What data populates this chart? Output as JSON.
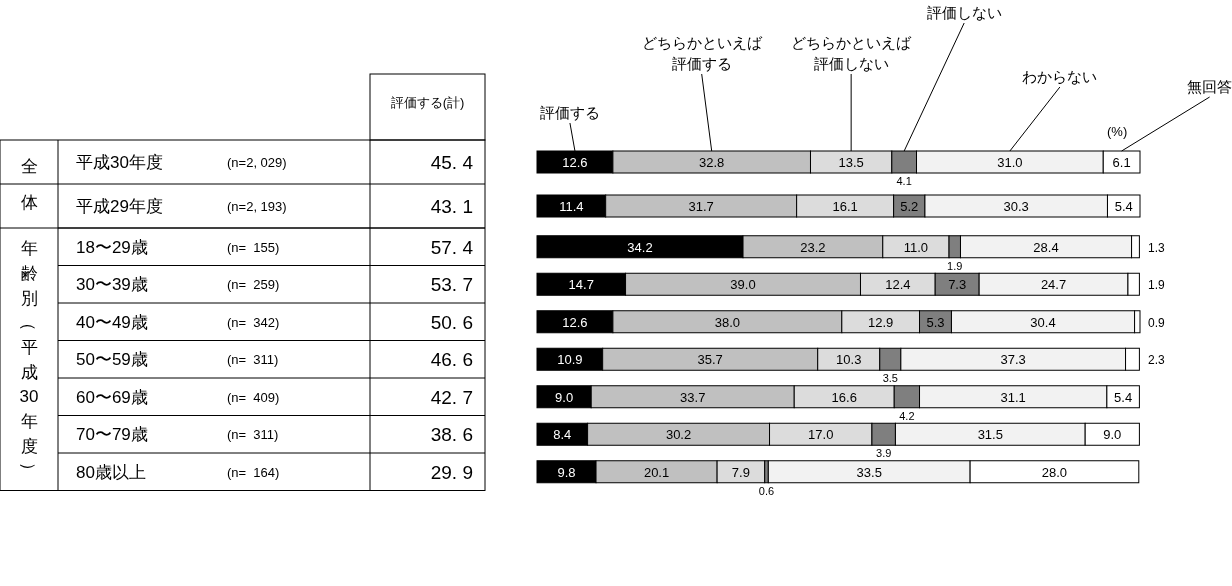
{
  "chart_data": {
    "type": "bar",
    "orientation": "horizontal",
    "stacked": true,
    "legend": "top",
    "categories": [
      "平成30年度",
      "平成29年度",
      "18〜29歳",
      "30〜39歳",
      "40〜49歳",
      "50〜59歳",
      "60〜69歳",
      "70〜79歳",
      "80歳以上"
    ],
    "series": [
      {
        "name": "評価する",
        "color": "#000000",
        "values": [
          12.6,
          11.4,
          34.2,
          14.7,
          12.6,
          10.9,
          9.0,
          8.4,
          9.8
        ],
        "value_labels": [
          "12.6",
          "11.4",
          "34.2",
          "14.7",
          "12.6",
          "10.9",
          "9.0",
          "8.4",
          "9.8"
        ]
      },
      {
        "name": "どちらかといえば評価する",
        "color": "#c0c0c0",
        "values": [
          32.8,
          31.7,
          23.2,
          39.0,
          38.0,
          35.7,
          33.7,
          30.2,
          20.1
        ],
        "value_labels": [
          "32.8",
          "31.7",
          "23.2",
          "39.0",
          "38.0",
          "35.7",
          "33.7",
          "30.2",
          "20.1"
        ]
      },
      {
        "name": "どちらかといえば評価しない",
        "color": "#dcdcdc",
        "values": [
          13.5,
          16.1,
          11.0,
          12.4,
          12.9,
          10.3,
          16.6,
          17.0,
          7.9
        ],
        "value_labels": [
          "13.5",
          "16.1",
          "11.0",
          "12.4",
          "12.9",
          "10.3",
          "16.6",
          "17.0",
          "7.9"
        ]
      },
      {
        "name": "評価しない",
        "color": "#7f7f7f",
        "values": [
          4.1,
          5.2,
          1.9,
          7.3,
          5.3,
          3.5,
          4.2,
          3.9,
          0.6
        ],
        "value_labels": [
          "4.1",
          "5.2",
          "1.9",
          "7.3",
          "5.3",
          "3.5",
          "4.2",
          "3.9",
          "0.6"
        ]
      },
      {
        "name": "わからない",
        "color": "#f2f2f2",
        "values": [
          31.0,
          30.3,
          28.4,
          24.7,
          30.4,
          37.3,
          31.1,
          31.5,
          33.5
        ],
        "value_labels": [
          "31.0",
          "30.3",
          "28.4",
          "24.7",
          "30.4",
          "37.3",
          "31.1",
          "31.5",
          "33.5"
        ]
      },
      {
        "name": "無回答",
        "color": "#ffffff",
        "values": [
          6.1,
          5.4,
          1.3,
          1.9,
          0.9,
          2.3,
          5.4,
          9.0,
          28.0
        ],
        "value_labels": [
          "6.1",
          "5.4",
          "1.3",
          "1.9",
          "0.9",
          "2.3",
          "5.4",
          "9.0",
          "28.0"
        ]
      }
    ],
    "annotations": [
      "全体",
      "年齢別（平成30年度）",
      "評価する(計)",
      "(%)",
      "(n=2, 029)",
      "(n=2, 193)",
      "(n=  155)",
      "(n=  259)",
      "(n=  342)",
      "(n=  311)",
      "(n=  409)",
      "(n=  311)",
      "(n=  164)",
      "45. 4",
      "43. 1",
      "57. 4",
      "53. 7",
      "50. 6",
      "46. 6",
      "42. 7",
      "38. 6",
      "29. 9"
    ]
  }
}
